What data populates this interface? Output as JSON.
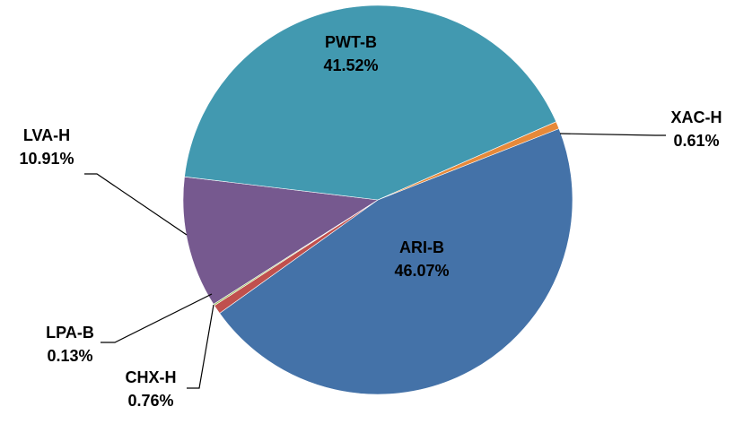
{
  "chart_data": {
    "type": "pie",
    "title": "",
    "legend": "none",
    "slices": [
      {
        "name": "ARI-B",
        "value": 46.07,
        "label": "46.07%",
        "color": "#4472A8"
      },
      {
        "name": "CHX-H",
        "value": 0.76,
        "label": "0.76%",
        "color": "#C0504D"
      },
      {
        "name": "LPA-B",
        "value": 0.13,
        "label": "0.13%",
        "color": "#9BBB59"
      },
      {
        "name": "LVA-H",
        "value": 10.91,
        "label": "10.91%",
        "color": "#76598F"
      },
      {
        "name": "PWT-B",
        "value": 41.52,
        "label": "41.52%",
        "color": "#4299B0"
      },
      {
        "name": "XAC-H",
        "value": 0.61,
        "label": "0.61%",
        "color": "#E6893A"
      }
    ]
  }
}
